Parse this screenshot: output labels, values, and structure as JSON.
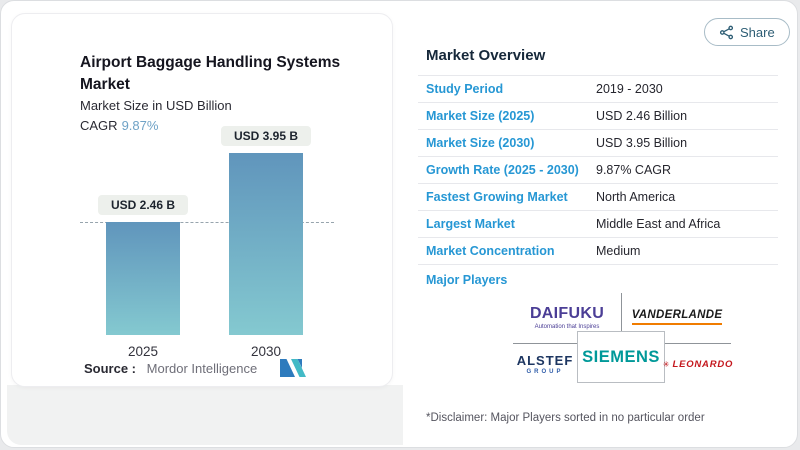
{
  "share": {
    "label": "Share"
  },
  "chart_panel": {
    "title": "Airport Baggage Handling Systems Market",
    "subtitle": "Market Size in USD Billion",
    "cagr_label": "CAGR",
    "cagr_value": "9.87%",
    "source_label": "Source :",
    "source_name": "Mordor Intelligence"
  },
  "chart_data": {
    "type": "bar",
    "title": "Airport Baggage Handling Systems Market",
    "ylabel": "Market Size in USD Billion",
    "categories": [
      "2025",
      "2030"
    ],
    "values": [
      2.46,
      3.95
    ],
    "bar_labels": [
      "USD 2.46 B",
      "USD 3.95 B"
    ],
    "ylim": [
      0,
      3.95
    ],
    "grid": false,
    "annotations": [
      "dashed horizontal reference line at 2025 bar top"
    ],
    "colors": {
      "bar_gradient_top": "#6095bc",
      "bar_gradient_bottom": "#84c9d0"
    }
  },
  "overview": {
    "title": "Market Overview",
    "rows": [
      {
        "label": "Study Period",
        "value": "2019 - 2030"
      },
      {
        "label": "Market Size (2025)",
        "value": "USD 2.46 Billion"
      },
      {
        "label": "Market Size (2030)",
        "value": "USD 3.95 Billion"
      },
      {
        "label": "Growth Rate (2025 - 2030)",
        "value": "9.87% CAGR"
      },
      {
        "label": "Fastest Growing Market",
        "value": "North America"
      },
      {
        "label": "Largest Market",
        "value": "Middle East and Africa"
      },
      {
        "label": "Market Concentration",
        "value": "Medium"
      }
    ],
    "major_players_label": "Major Players",
    "players": {
      "daifuku": {
        "name": "DAIFUKU",
        "tagline": "Automation that Inspires",
        "color": "#4b3e96"
      },
      "vanderlande": {
        "name": "VANDERLANDE",
        "underline_color": "#f07c00"
      },
      "siemens": {
        "name": "SIEMENS",
        "color": "#009999"
      },
      "alstef": {
        "name": "ALSTEF",
        "sub": "GROUP",
        "color": "#1d3661"
      },
      "leonardo": {
        "name": "LEONARDO",
        "color": "#c4161c"
      }
    },
    "disclaimer": "*Disclaimer: Major Players sorted in no particular order"
  },
  "colors": {
    "row_label_blue": "#2697d4",
    "cagr_blue": "#6fa2c6",
    "share_teal": "#2d5d74",
    "badge_bg": "#edf0ec"
  }
}
